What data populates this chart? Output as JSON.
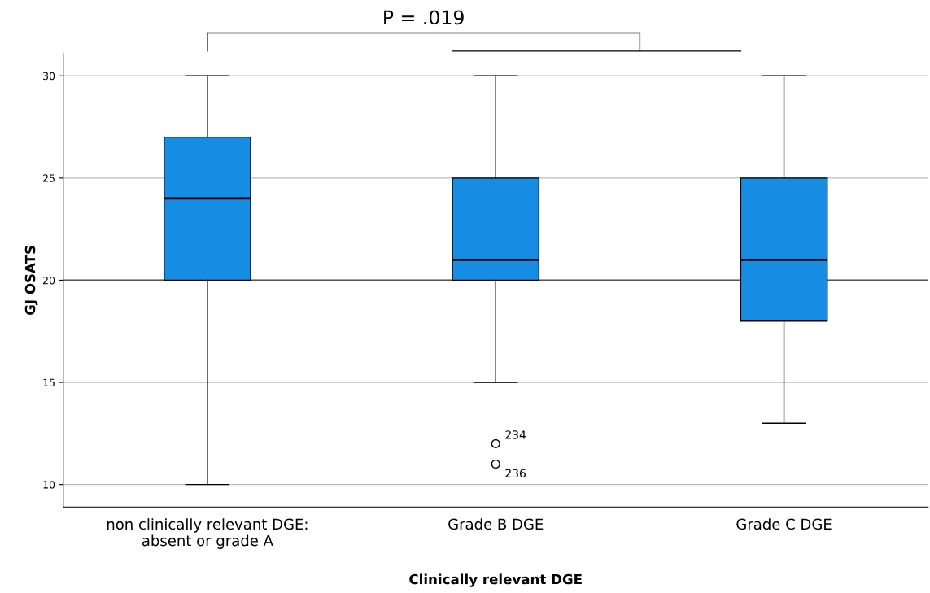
{
  "chart_data": {
    "type": "box",
    "xlabel": "Clinically relevant DGE",
    "ylabel": "GJ OSATS",
    "categories": [
      "non clinically relevant DGE:\nabsent or grade A",
      "Grade B DGE",
      "Grade C DGE"
    ],
    "boxes": [
      {
        "low": 10,
        "q1": 20,
        "median": 24,
        "q3": 27,
        "high": 30
      },
      {
        "low": 15,
        "q1": 20,
        "median": 21,
        "q3": 25,
        "high": 30,
        "outliers": [
          12,
          11
        ]
      },
      {
        "low": 13,
        "q1": 18,
        "median": 21,
        "q3": 25,
        "high": 30
      }
    ],
    "color": "#168ce3",
    "ylim": [
      8.9,
      31.1
    ],
    "yticks": [
      10,
      15,
      20,
      25,
      30
    ],
    "grid": "y",
    "ref_lines": [
      {
        "axis": "y",
        "value": 20,
        "color": "#555555"
      }
    ],
    "annotations": [
      "P = .019",
      "234",
      "236"
    ]
  }
}
